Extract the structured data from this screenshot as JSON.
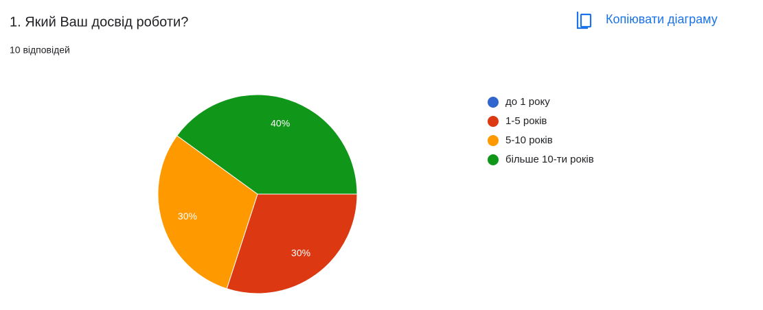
{
  "chart_data": {
    "type": "pie",
    "title": "1. Який Ваш досвід роботи?",
    "subtitle": "10 відповідей",
    "button": "Копіювати діаграму",
    "categories": [
      "до 1 року",
      "1-5 років",
      "5-10 років",
      "більше 10-ти років"
    ],
    "values": [
      0,
      30,
      30,
      40
    ],
    "value_labels": [
      null,
      "30%",
      "30%",
      "40%"
    ],
    "colors": [
      "#3366cc",
      "#dc3912",
      "#ff9900",
      "#109618"
    ],
    "legend": "right"
  }
}
